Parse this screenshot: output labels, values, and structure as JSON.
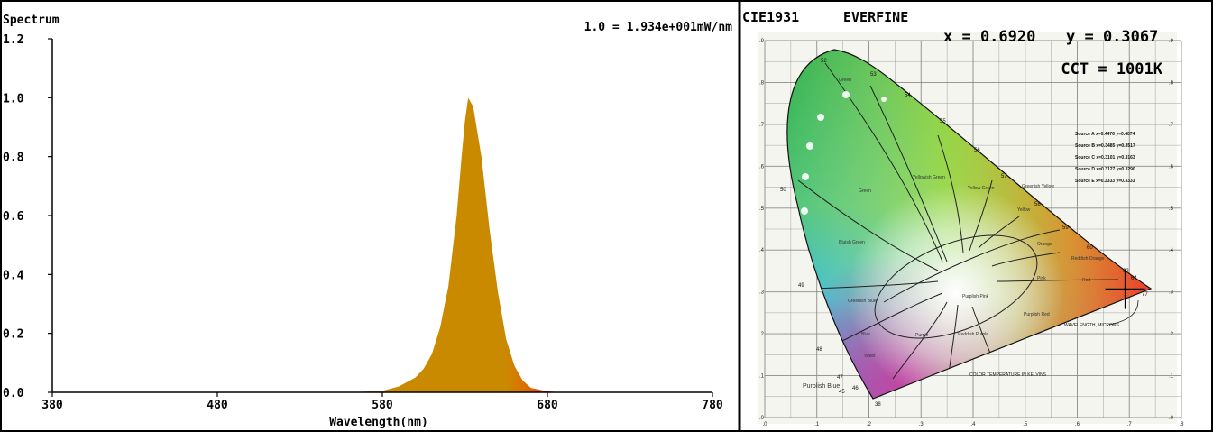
{
  "chart_data": [
    {
      "type": "area",
      "title": "Spectrum",
      "scale_note": "1.0 = 1.934e+001mW/nm",
      "xlabel": "Wavelength(nm)",
      "ylabel": "",
      "xlim": [
        380,
        780
      ],
      "ylim": [
        0,
        1.2
      ],
      "xticks": [
        "380",
        "480",
        "580",
        "680",
        "780"
      ],
      "yticks": [
        "0.0",
        "0.2",
        "0.4",
        "0.6",
        "0.8",
        "1.0",
        "1.2"
      ],
      "grid": false,
      "series": [
        {
          "x": [
            560,
            580,
            590,
            600,
            605,
            610,
            615,
            620,
            625,
            628,
            630,
            632,
            635,
            640,
            645,
            650,
            655,
            660,
            665,
            670,
            680,
            690
          ],
          "y": [
            0,
            0.005,
            0.02,
            0.05,
            0.08,
            0.13,
            0.22,
            0.36,
            0.6,
            0.8,
            0.92,
            1.0,
            0.97,
            0.8,
            0.55,
            0.34,
            0.18,
            0.09,
            0.04,
            0.015,
            0.003,
            0
          ],
          "color": "#ff0000"
        }
      ]
    },
    {
      "type": "scatter",
      "title": "CIE1931",
      "brand": "EVERFINE",
      "readout_x": "x = 0.6920",
      "readout_y": "y = 0.3067",
      "readout_cct": "CCT = 1001K",
      "xlim": [
        0,
        0.8
      ],
      "ylim": [
        0,
        0.9
      ],
      "point": {
        "x": 0.692,
        "y": 0.3067
      },
      "xticks": [
        ".0",
        ".1",
        ".2",
        ".3",
        ".4",
        ".5",
        ".6",
        ".7",
        ".8"
      ],
      "yticks": [
        ".0",
        ".1",
        ".2",
        ".3",
        ".4",
        ".5",
        ".6",
        ".7",
        ".8",
        ".9"
      ],
      "region_labels": [
        "Green",
        "Yellowish Green",
        "Yellow Green",
        "Greenish Yellow",
        "Yellow",
        "Orange",
        "Reddish Orange",
        "Red",
        "Pink",
        "Purplish Pink",
        "Purplish Red",
        "Reddish Purple",
        "Purple",
        "Violet",
        "Blue",
        "Greenish Blue",
        "Bluish Green",
        "Purplish Blue"
      ],
      "wavelength_labels": [
        "52",
        "53",
        "54",
        "55",
        "56",
        "57",
        "58",
        "59",
        "60",
        "62",
        "64",
        "77",
        "50",
        "49",
        "48",
        "47",
        "46",
        "45",
        "38"
      ],
      "sources": [
        "Source A x=0.4476 y=0.4074",
        "Source B x=0.3485 y=0.3517",
        "Source C x=0.3101 y=0.3163",
        "Source D x=0.3127 y=0.3290",
        "Source E x=0.3333 y=0.3333"
      ],
      "locus_caption": "WAVELENGTH, MICRONS",
      "temperature_caption": "COLOR TEMPERATURE IN KELVINS"
    }
  ]
}
